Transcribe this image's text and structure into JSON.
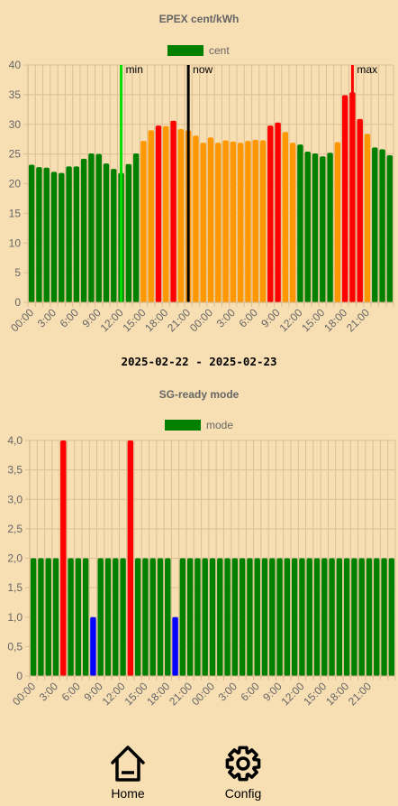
{
  "date_range": "2025-02-22 - 2025-02-23",
  "nav": {
    "home_label": "Home",
    "config_label": "Config"
  },
  "chart_data": [
    {
      "type": "bar",
      "title": "EPEX cent/kWh",
      "legend": {
        "label": "cent",
        "position": "top",
        "color": "#008000"
      },
      "ylim": [
        0,
        40
      ],
      "yticks": [
        "0",
        "5",
        "10",
        "15",
        "20",
        "25",
        "30",
        "35",
        "40"
      ],
      "xtick_labels": [
        "00:00",
        "3:00",
        "6:00",
        "9:00",
        "12:00",
        "15:00",
        "18:00",
        "21:00",
        "00:00",
        "3:00",
        "6:00",
        "9:00",
        "12:00",
        "15:00",
        "18:00",
        "21:00"
      ],
      "grid": true,
      "values": [
        23.2,
        22.8,
        22.7,
        22.0,
        21.8,
        22.9,
        22.9,
        24.2,
        25.1,
        25.0,
        23.4,
        22.5,
        21.8,
        23.3,
        25.1,
        27.2,
        29.0,
        29.8,
        29.7,
        30.6,
        29.2,
        29.0,
        28.1,
        26.9,
        27.8,
        26.9,
        27.3,
        27.1,
        26.9,
        27.2,
        27.4,
        27.3,
        29.8,
        30.3,
        28.7,
        26.9,
        26.6,
        25.4,
        25.1,
        24.6,
        25.2,
        27.0,
        34.9,
        35.4,
        30.9,
        28.4,
        26.1,
        25.8,
        24.8
      ],
      "colors": [
        "#008000",
        "#008000",
        "#008000",
        "#008000",
        "#008000",
        "#008000",
        "#008000",
        "#008000",
        "#008000",
        "#008000",
        "#008000",
        "#008000",
        "#008000",
        "#008000",
        "#008000",
        "#ff9800",
        "#ff9800",
        "#ff0000",
        "#ff9800",
        "#ff0000",
        "#ff9800",
        "#ff9800",
        "#ff9800",
        "#ff9800",
        "#ff9800",
        "#ff9800",
        "#ff9800",
        "#ff9800",
        "#ff9800",
        "#ff9800",
        "#ff9800",
        "#ff9800",
        "#ff0000",
        "#ff0000",
        "#ff9800",
        "#ff9800",
        "#008000",
        "#008000",
        "#008000",
        "#008000",
        "#008000",
        "#ff9800",
        "#ff0000",
        "#ff0000",
        "#ff0000",
        "#ff9800",
        "#008000",
        "#008000",
        "#008000"
      ],
      "markers": [
        {
          "label": "min",
          "index": 12,
          "color": "#00e000"
        },
        {
          "label": "now",
          "index": 21,
          "color": "#000000"
        },
        {
          "label": "max",
          "index": 43,
          "color": "#ff0000"
        }
      ]
    },
    {
      "type": "bar",
      "title": "SG-ready mode",
      "legend": {
        "label": "mode",
        "position": "top",
        "color": "#008000"
      },
      "ylim": [
        0,
        4
      ],
      "yticks": [
        "0",
        "0,5",
        "1,0",
        "1,5",
        "2,0",
        "2,5",
        "3,0",
        "3,5",
        "4,0"
      ],
      "xtick_labels": [
        "00:00",
        "3:00",
        "6:00",
        "9:00",
        "12:00",
        "15:00",
        "18:00",
        "21:00",
        "00:00",
        "3:00",
        "6:00",
        "9:00",
        "12:00",
        "15:00",
        "18:00",
        "21:00"
      ],
      "grid": true,
      "values": [
        2,
        2,
        2,
        2,
        4,
        2,
        2,
        2,
        1,
        2,
        2,
        2,
        2,
        4,
        2,
        2,
        2,
        2,
        2,
        1,
        2,
        2,
        2,
        2,
        2,
        2,
        2,
        2,
        2,
        2,
        2,
        2,
        2,
        2,
        2,
        2,
        2,
        2,
        2,
        2,
        2,
        2,
        2,
        2,
        2,
        2,
        2,
        2,
        2
      ],
      "colors": [
        "#008000",
        "#008000",
        "#008000",
        "#008000",
        "#ff0000",
        "#008000",
        "#008000",
        "#008000",
        "#0000ff",
        "#008000",
        "#008000",
        "#008000",
        "#008000",
        "#ff0000",
        "#008000",
        "#008000",
        "#008000",
        "#008000",
        "#008000",
        "#0000ff",
        "#008000",
        "#008000",
        "#008000",
        "#008000",
        "#008000",
        "#008000",
        "#008000",
        "#008000",
        "#008000",
        "#008000",
        "#008000",
        "#008000",
        "#008000",
        "#008000",
        "#008000",
        "#008000",
        "#008000",
        "#008000",
        "#008000",
        "#008000",
        "#008000",
        "#008000",
        "#008000",
        "#008000",
        "#008000",
        "#008000",
        "#008000",
        "#008000",
        "#008000"
      ]
    }
  ]
}
